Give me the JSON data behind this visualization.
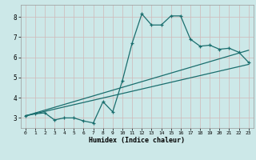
{
  "xlabel": "Humidex (Indice chaleur)",
  "bg_color": "#cce8e8",
  "grid_color": "#b8d4d4",
  "line_color": "#1a6e6e",
  "xlim": [
    -0.5,
    23.5
  ],
  "ylim": [
    2.5,
    8.6
  ],
  "xticks": [
    0,
    1,
    2,
    3,
    4,
    5,
    6,
    7,
    8,
    9,
    10,
    11,
    12,
    13,
    14,
    15,
    16,
    17,
    18,
    19,
    20,
    21,
    22,
    23
  ],
  "yticks": [
    3,
    4,
    5,
    6,
    7,
    8
  ],
  "line1_x": [
    0,
    1,
    2,
    3,
    4,
    5,
    6,
    7,
    8,
    9,
    10,
    11,
    12,
    13,
    14,
    15,
    16,
    17,
    18,
    19,
    20,
    21,
    22,
    23
  ],
  "line1_y": [
    3.1,
    3.2,
    3.25,
    2.9,
    3.0,
    3.0,
    2.85,
    2.75,
    3.8,
    3.3,
    4.85,
    6.7,
    8.15,
    7.6,
    7.6,
    8.05,
    8.05,
    6.9,
    6.55,
    6.6,
    6.4,
    6.45,
    6.25,
    5.75
  ],
  "line2_x": [
    0,
    23
  ],
  "line2_y": [
    3.1,
    6.35
  ],
  "line3_x": [
    0,
    23
  ],
  "line3_y": [
    3.1,
    5.65
  ]
}
